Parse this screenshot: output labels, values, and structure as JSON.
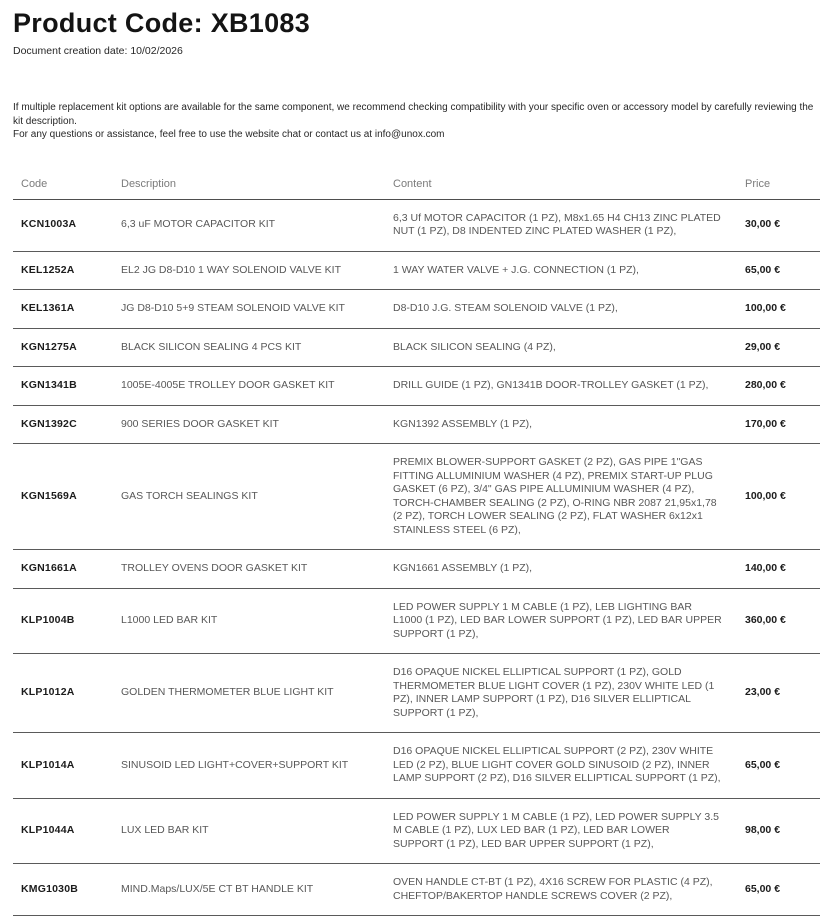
{
  "header": {
    "title": "Product Code: XB1083",
    "creation_date": "Document creation date: 10/02/2026"
  },
  "notice": {
    "line1": "If multiple replacement kit options are available for the same component, we recommend checking compatibility with your specific oven or accessory model by carefully reviewing the kit description.",
    "line2": "For any questions or assistance, feel free to use the website chat or contact us at info@unox.com"
  },
  "table": {
    "columns": {
      "code": "Code",
      "description": "Description",
      "content": "Content",
      "price": "Price"
    },
    "rows": [
      {
        "code": "KCN1003A",
        "description": "6,3 uF MOTOR CAPACITOR KIT",
        "content": "6,3 Uf MOTOR CAPACITOR (1 PZ), M8x1.65 H4 CH13 ZINC PLATED NUT (1 PZ), D8 INDENTED ZINC PLATED WASHER (1 PZ),",
        "price": "30,00 €"
      },
      {
        "code": "KEL1252A",
        "description": "EL2 JG D8-D10 1 WAY SOLENOID VALVE KIT",
        "content": "1 WAY WATER VALVE + J.G. CONNECTION (1 PZ),",
        "price": "65,00 €"
      },
      {
        "code": "KEL1361A",
        "description": "JG D8-D10 5+9 STEAM SOLENOID VALVE KIT",
        "content": "D8-D10 J.G. STEAM SOLENOID VALVE (1 PZ),",
        "price": "100,00 €"
      },
      {
        "code": "KGN1275A",
        "description": "BLACK SILICON SEALING 4 PCS KIT",
        "content": "BLACK SILICON SEALING (4 PZ),",
        "price": "29,00 €"
      },
      {
        "code": "KGN1341B",
        "description": "1005E-4005E TROLLEY DOOR GASKET KIT",
        "content": "DRILL GUIDE (1 PZ), GN1341B DOOR-TROLLEY GASKET (1 PZ),",
        "price": "280,00 €"
      },
      {
        "code": "KGN1392C",
        "description": "900 SERIES DOOR GASKET KIT",
        "content": "KGN1392 ASSEMBLY (1 PZ),",
        "price": "170,00 €"
      },
      {
        "code": "KGN1569A",
        "description": "GAS TORCH SEALINGS KIT",
        "content": "PREMIX BLOWER-SUPPORT GASKET (2 PZ), GAS PIPE 1\"GAS FITTING ALLUMINIUM WASHER (4 PZ), PREMIX START-UP PLUG GASKET (6 PZ), 3/4\" GAS PIPE ALLUMINIUM WASHER (4 PZ), TORCH-CHAMBER SEALING (2 PZ), O-RING NBR 2087 21,95x1,78 (2 PZ), TORCH LOWER SEALING (2 PZ), FLAT WASHER 6x12x1 STAINLESS STEEL (6 PZ),",
        "price": "100,00 €"
      },
      {
        "code": "KGN1661A",
        "description": "TROLLEY OVENS DOOR GASKET KIT",
        "content": "KGN1661 ASSEMBLY (1 PZ),",
        "price": "140,00 €"
      },
      {
        "code": "KLP1004B",
        "description": "L1000 LED BAR KIT",
        "content": "LED POWER SUPPLY 1 M CABLE (1 PZ), LEB LIGHTING BAR L1000 (1 PZ), LED BAR LOWER SUPPORT (1 PZ), LED BAR UPPER SUPPORT (1 PZ),",
        "price": "360,00 €"
      },
      {
        "code": "KLP1012A",
        "description": "GOLDEN THERMOMETER BLUE LIGHT KIT",
        "content": "D16 OPAQUE NICKEL ELLIPTICAL SUPPORT (1 PZ), GOLD THERMOMETER BLUE LIGHT COVER (1 PZ), 230V WHITE LED (1 PZ), INNER LAMP SUPPORT (1 PZ), D16 SILVER ELLIPTICAL SUPPORT (1 PZ),",
        "price": "23,00 €"
      },
      {
        "code": "KLP1014A",
        "description": "SINUSOID LED LIGHT+COVER+SUPPORT KIT",
        "content": "D16 OPAQUE NICKEL ELLIPTICAL SUPPORT (2 PZ), 230V WHITE LED (2 PZ), BLUE LIGHT COVER GOLD SINUSOID (2 PZ), INNER LAMP SUPPORT (2 PZ), D16 SILVER ELLIPTICAL SUPPORT (1 PZ),",
        "price": "65,00 €"
      },
      {
        "code": "KLP1044A",
        "description": "LUX LED BAR KIT",
        "content": "LED POWER SUPPLY 1 M CABLE (1 PZ), LED POWER SUPPLY 3.5 M CABLE (1 PZ), LUX LED BAR (1 PZ), LED BAR LOWER SUPPORT (1 PZ), LED BAR UPPER SUPPORT (1 PZ),",
        "price": "98,00 €"
      },
      {
        "code": "KMG1030B",
        "description": "MIND.Maps/LUX/5E CT BT HANDLE KIT",
        "content": "OVEN HANDLE CT-BT (1 PZ), 4X16 SCREW FOR PLASTIC (4 PZ), CHEFTOP/BAKERTOP HANDLE SCREWS COVER (2 PZ),",
        "price": "65,00 €"
      }
    ]
  },
  "colors": {
    "heading_text": "#141414",
    "body_text": "#585858",
    "table_header_text": "#7b7b7b",
    "row_border": "#5a5a5a"
  }
}
